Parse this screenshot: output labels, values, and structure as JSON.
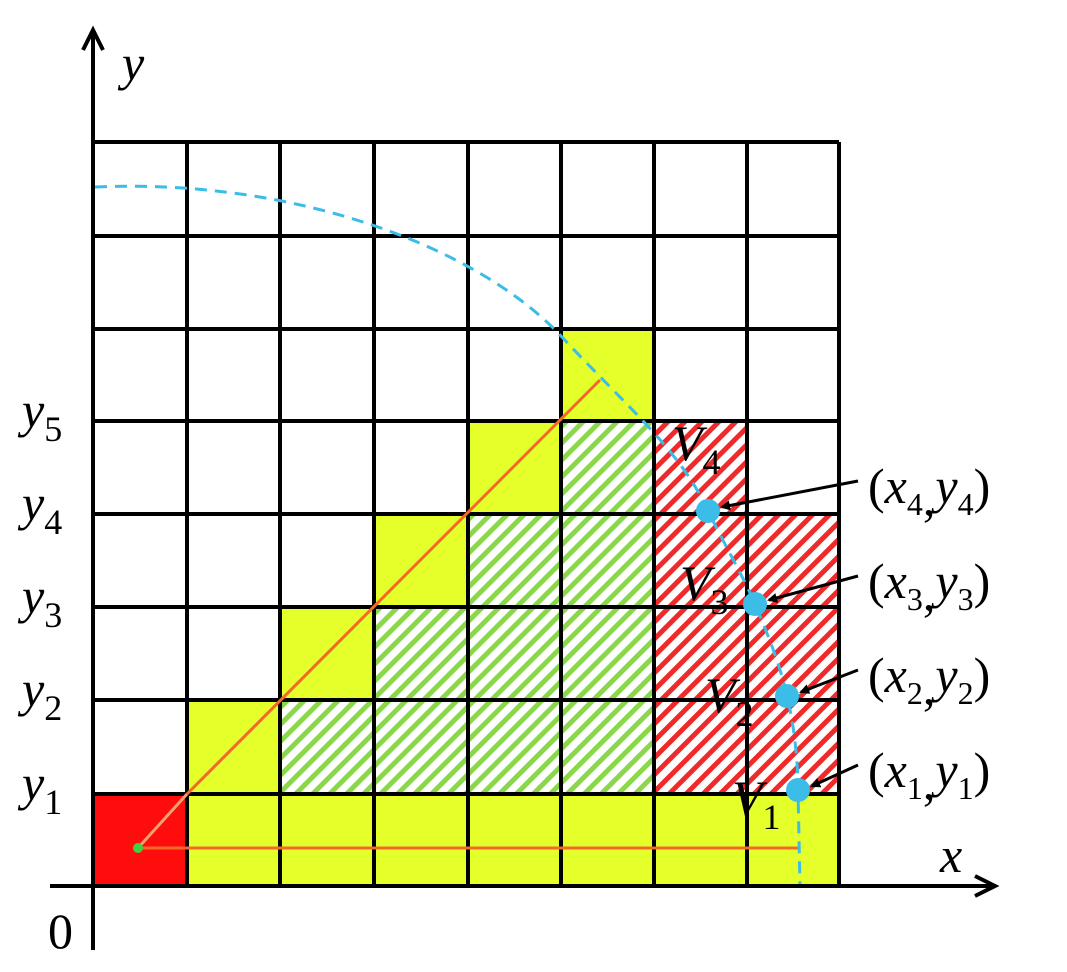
{
  "axes": {
    "x": "x",
    "y": "y",
    "origin": "0"
  },
  "y_labels": [
    [
      "y",
      "1"
    ],
    [
      "y",
      "2"
    ],
    [
      "y",
      "3"
    ],
    [
      "y",
      "4"
    ],
    [
      "y",
      "5"
    ]
  ],
  "vertices": [
    [
      "V",
      "1"
    ],
    [
      "V",
      "2"
    ],
    [
      "V",
      "3"
    ],
    [
      "V",
      "4"
    ]
  ],
  "points": [
    [
      "(",
      "x",
      "1",
      ",",
      "y",
      "1",
      ")"
    ],
    [
      "(",
      "x",
      "2",
      ",",
      "y",
      "2",
      ")"
    ],
    [
      "(",
      "x",
      "3",
      ",",
      "y",
      "3",
      ")"
    ],
    [
      "(",
      "x",
      "4",
      ",",
      "y",
      "4",
      ")"
    ]
  ]
}
